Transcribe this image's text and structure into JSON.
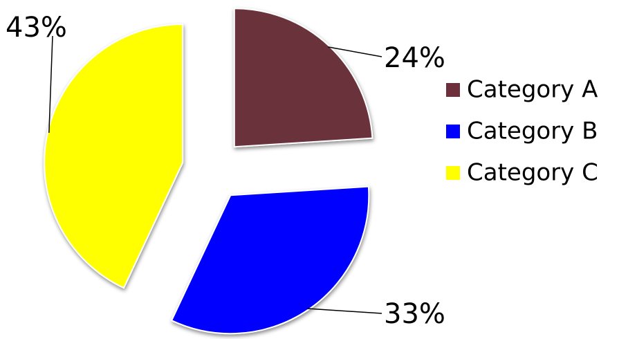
{
  "chart_data": {
    "type": "pie",
    "title": "",
    "categories": [
      "Category A",
      "Category B",
      "Category C"
    ],
    "values": [
      24,
      33,
      43
    ],
    "value_labels": [
      "24%",
      "33%",
      "43%"
    ],
    "colors": [
      "#6b303b",
      "#0000ff",
      "#ffff00"
    ],
    "exploded": true,
    "legend_position": "right"
  }
}
